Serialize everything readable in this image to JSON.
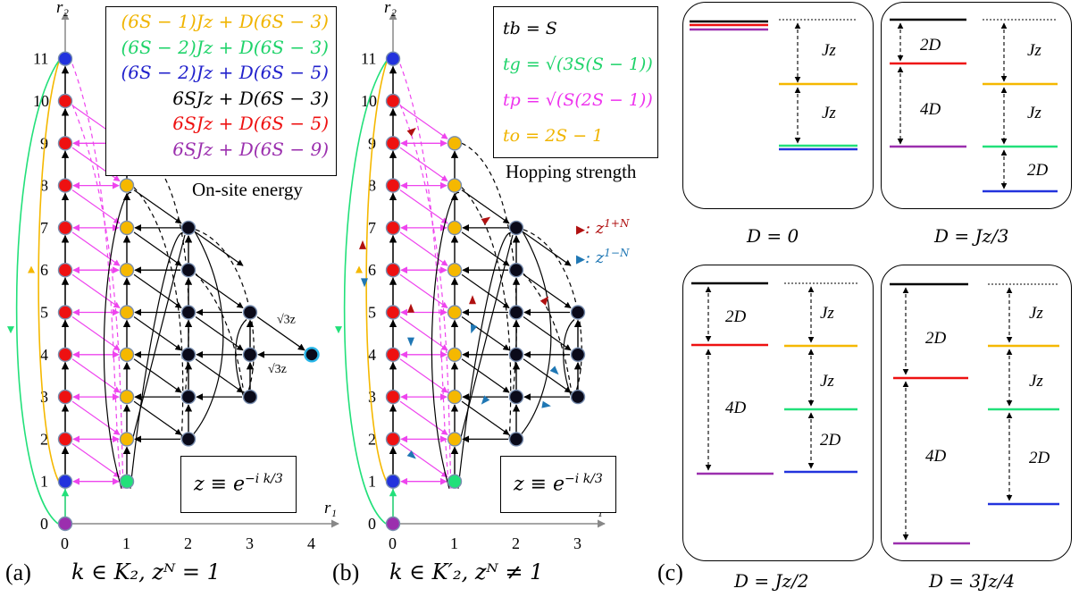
{
  "panel_a": {
    "label": "(a)",
    "condition": "k ∈ K₂, zᴺ = 1",
    "axis_r1": "r₁",
    "axis_r2": "r₂",
    "x_ticks": [
      "0",
      "1",
      "2",
      "3",
      "4"
    ],
    "y_ticks": [
      "0",
      "1",
      "2",
      "3",
      "4",
      "5",
      "6",
      "7",
      "8",
      "9",
      "10",
      "11"
    ],
    "z_def": "z ≡ e^{−i k/3}",
    "z_def_main": "z ≡ e",
    "z_def_exp": "−i k/3",
    "sqrt3z_upper": "√3z",
    "sqrt3z_lower": "√3z",
    "energy_title": "On-site energy",
    "energies": [
      {
        "text": "(6S − 1)Jz + D(6S − 3)",
        "color": "#f0b400"
      },
      {
        "text": "(6S − 2)Jz + D(6S − 3)",
        "color": "#1fd36a"
      },
      {
        "text": "(6S − 2)Jz + D(6S − 5)",
        "color": "#2222cc"
      },
      {
        "text": "6SJz + D(6S − 3)",
        "color": "#000000"
      },
      {
        "text": "6SJz + D(6S − 5)",
        "color": "#ee1111"
      },
      {
        "text": "6SJz + D(6S − 9)",
        "color": "#9b2fae"
      }
    ]
  },
  "panel_b": {
    "label": "(b)",
    "condition": "k ∈ K′₂, zᴺ ≠ 1",
    "axis_r1": "r₁",
    "axis_r2": "r₂",
    "x_ticks": [
      "0",
      "1",
      "2",
      "3"
    ],
    "y_ticks": [
      "0",
      "1",
      "2",
      "3",
      "4",
      "5",
      "6",
      "7",
      "8",
      "9",
      "10",
      "11"
    ],
    "z_def_main": "z ≡ e",
    "z_def_exp": "−i k/3",
    "hop_title": "Hopping strength",
    "hoppings": [
      {
        "text": "tb = S",
        "color": "#000000"
      },
      {
        "text": "tg = √(3S(S − 1))",
        "color": "#1fd36a"
      },
      {
        "text": "tp = √(S(2S − 1))",
        "color": "#ee33ee"
      },
      {
        "text": "to = 2S − 1",
        "color": "#f0b400"
      }
    ],
    "legend": [
      {
        "text": ": z^{1+N}",
        "main": ": z",
        "exp": "1+N",
        "color": "#b01010"
      },
      {
        "text": ": z^{1−N}",
        "main": ": z",
        "exp": "1−N",
        "color": "#1f77b4"
      }
    ]
  },
  "panel_c": {
    "label": "(c)",
    "boxes": [
      {
        "caption": "D = 0"
      },
      {
        "caption": "D = Jz/3"
      },
      {
        "caption": "D = Jz/2"
      },
      {
        "caption": "D = 3Jz/4"
      }
    ],
    "gap_labels": {
      "jz": "Jz",
      "two_d": "2D",
      "four_d": "4D"
    }
  },
  "colors": {
    "yellow": "#f5b800",
    "green": "#22e07a",
    "blue": "#2233dd",
    "black": "#000000",
    "red": "#ee1111",
    "purple": "#9b2fae",
    "magenta": "#ee44ee",
    "cyan": "#29b6e8",
    "darkred": "#b01010",
    "steelblue": "#1f77b4",
    "axis": "#888888"
  }
}
